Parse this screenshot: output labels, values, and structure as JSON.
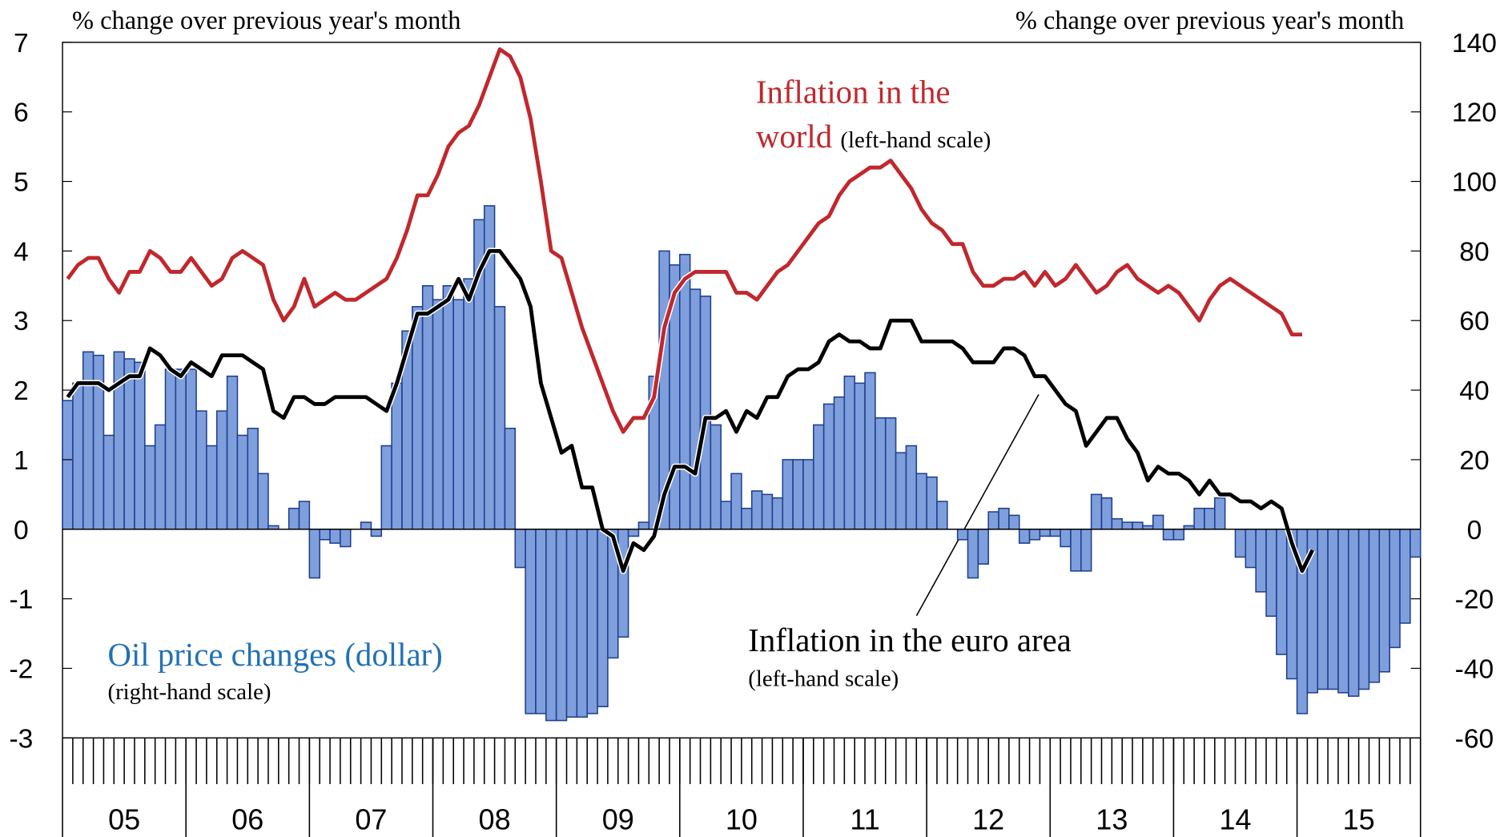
{
  "chart_data": {
    "type": "combo",
    "ylabel": "% change over previous year's month",
    "y2label": "% change over previous year's month",
    "categories": [
      null,
      null,
      null,
      null,
      null,
      null,
      null,
      null,
      null,
      null,
      null,
      null,
      null,
      null,
      null,
      null,
      null,
      null,
      null,
      null,
      null,
      null,
      null,
      null,
      null,
      null,
      null,
      null,
      null,
      null,
      null,
      null,
      null,
      null,
      null,
      null,
      null,
      null,
      null,
      null,
      null,
      null,
      null,
      null,
      null,
      null,
      null,
      null,
      null,
      null,
      null,
      null,
      null,
      null,
      null,
      null,
      null,
      null,
      null,
      null,
      null,
      null,
      null,
      null,
      null,
      null,
      null,
      null,
      null,
      null,
      null,
      null,
      null,
      null,
      null,
      null,
      null,
      null,
      null,
      null,
      null,
      null,
      null,
      null,
      null,
      null,
      null,
      null,
      null,
      null,
      null,
      null,
      null,
      null,
      null,
      null,
      null,
      null,
      null,
      null,
      null,
      null,
      null,
      null,
      null,
      null,
      null,
      null,
      null,
      null,
      null,
      null,
      null,
      null,
      null,
      null,
      null,
      null,
      null,
      null,
      null,
      null,
      null,
      null,
      null,
      null,
      null,
      null,
      null,
      null,
      null,
      null
    ],
    "category_groups": [
      "05",
      "06",
      "07",
      "08",
      "09",
      "10",
      "11",
      "12",
      "13",
      "14",
      "15"
    ],
    "ylim": [
      -3,
      7
    ],
    "yticks": [
      -3,
      -2,
      -1,
      0,
      1,
      2,
      3,
      4,
      5,
      6,
      7
    ],
    "y2lim": [
      -60,
      140
    ],
    "y2ticks": [
      -60,
      -40,
      -20,
      0,
      20,
      40,
      60,
      80,
      100,
      120,
      140
    ],
    "series": [
      {
        "name": "Oil price changes (dollar)",
        "note": "(right-hand scale)",
        "type": "bar",
        "axis": "y2",
        "color": "#7f9fdc",
        "values": [
          37,
          42,
          51,
          50,
          27,
          51,
          49,
          48,
          24,
          30,
          46,
          46,
          46,
          34,
          24,
          34,
          44,
          27,
          29,
          16,
          1,
          0,
          6,
          8,
          -14,
          -3,
          -4,
          -5,
          0,
          2,
          -2,
          24,
          42,
          57,
          64,
          70,
          66,
          70,
          66,
          72,
          89,
          93,
          64,
          29,
          -11,
          -53,
          -53,
          -55,
          -55,
          -54,
          -54,
          -53,
          -51,
          -37,
          -31,
          -2,
          2,
          44,
          80,
          76,
          79,
          69,
          67,
          30,
          8,
          16,
          6,
          11,
          10,
          9,
          20,
          20,
          20,
          30,
          36,
          38,
          44,
          42,
          45,
          32,
          32,
          22,
          24,
          16,
          15,
          8,
          0,
          -3,
          -14,
          -10,
          5,
          6,
          4,
          -4,
          -3,
          -2,
          -2,
          -5,
          -12,
          -12,
          10,
          9,
          3,
          2,
          2,
          1,
          4,
          -3,
          -3,
          1,
          6,
          6,
          9,
          0,
          -8,
          -11,
          -18,
          -25,
          -36,
          -43,
          -53,
          -47,
          -46,
          -46,
          -47,
          -48,
          -46,
          -44,
          -41,
          -34,
          -27,
          -8
        ]
      },
      {
        "name": "Inflation in the world",
        "note": "(left-hand scale)",
        "type": "line",
        "color": "#c0282d",
        "values": [
          3.6,
          3.8,
          3.9,
          3.9,
          3.6,
          3.4,
          3.7,
          3.7,
          4.0,
          3.9,
          3.7,
          3.7,
          3.9,
          3.7,
          3.5,
          3.6,
          3.9,
          4.0,
          3.9,
          3.8,
          3.3,
          3.0,
          3.2,
          3.6,
          3.2,
          3.3,
          3.4,
          3.3,
          3.3,
          3.4,
          3.5,
          3.6,
          3.9,
          4.3,
          4.8,
          4.8,
          5.1,
          5.5,
          5.7,
          5.8,
          6.1,
          6.5,
          6.9,
          6.8,
          6.5,
          5.9,
          5.0,
          4.0,
          3.9,
          3.4,
          2.9,
          2.5,
          2.1,
          1.7,
          1.4,
          1.6,
          1.6,
          1.9,
          2.9,
          3.4,
          3.6,
          3.7,
          3.7,
          3.7,
          3.7,
          3.4,
          3.4,
          3.3,
          3.5,
          3.7,
          3.8,
          4.0,
          4.2,
          4.4,
          4.5,
          4.8,
          5.0,
          5.1,
          5.2,
          5.2,
          5.3,
          5.1,
          4.9,
          4.6,
          4.4,
          4.3,
          4.1,
          4.1,
          3.7,
          3.5,
          3.5,
          3.6,
          3.6,
          3.7,
          3.5,
          3.7,
          3.5,
          3.6,
          3.8,
          3.6,
          3.4,
          3.5,
          3.7,
          3.8,
          3.6,
          3.5,
          3.4,
          3.5,
          3.4,
          3.2,
          3.0,
          3.3,
          3.5,
          3.6,
          3.5,
          3.4,
          3.3,
          3.2,
          3.1,
          2.8,
          2.8,
          null,
          null,
          null,
          null,
          null,
          null,
          null,
          null,
          null,
          null,
          null
        ]
      },
      {
        "name": "Inflation in the euro area",
        "note": "(left-hand scale)",
        "type": "line",
        "color": "#000000",
        "values": [
          1.9,
          2.1,
          2.1,
          2.1,
          2.0,
          2.1,
          2.2,
          2.2,
          2.6,
          2.5,
          2.3,
          2.2,
          2.4,
          2.3,
          2.2,
          2.5,
          2.5,
          2.5,
          2.4,
          2.3,
          1.7,
          1.6,
          1.9,
          1.9,
          1.8,
          1.8,
          1.9,
          1.9,
          1.9,
          1.9,
          1.8,
          1.7,
          2.1,
          2.6,
          3.1,
          3.1,
          3.2,
          3.3,
          3.6,
          3.3,
          3.7,
          4.0,
          4.0,
          3.8,
          3.6,
          3.2,
          2.1,
          1.6,
          1.1,
          1.2,
          0.6,
          0.6,
          0.0,
          -0.1,
          -0.6,
          -0.2,
          -0.3,
          -0.1,
          0.5,
          0.9,
          0.9,
          0.8,
          1.6,
          1.6,
          1.7,
          1.4,
          1.7,
          1.6,
          1.9,
          1.9,
          2.2,
          2.3,
          2.3,
          2.4,
          2.7,
          2.8,
          2.7,
          2.7,
          2.6,
          2.6,
          3.0,
          3.0,
          3.0,
          2.7,
          2.7,
          2.7,
          2.7,
          2.6,
          2.4,
          2.4,
          2.4,
          2.6,
          2.6,
          2.5,
          2.2,
          2.2,
          2.0,
          1.8,
          1.7,
          1.2,
          1.4,
          1.6,
          1.6,
          1.3,
          1.1,
          0.7,
          0.9,
          0.8,
          0.8,
          0.7,
          0.5,
          0.7,
          0.5,
          0.5,
          0.4,
          0.4,
          0.3,
          0.4,
          0.3,
          -0.2,
          -0.6,
          -0.3,
          null,
          null,
          null,
          null,
          null,
          null,
          null,
          null,
          null,
          null
        ]
      }
    ]
  }
}
